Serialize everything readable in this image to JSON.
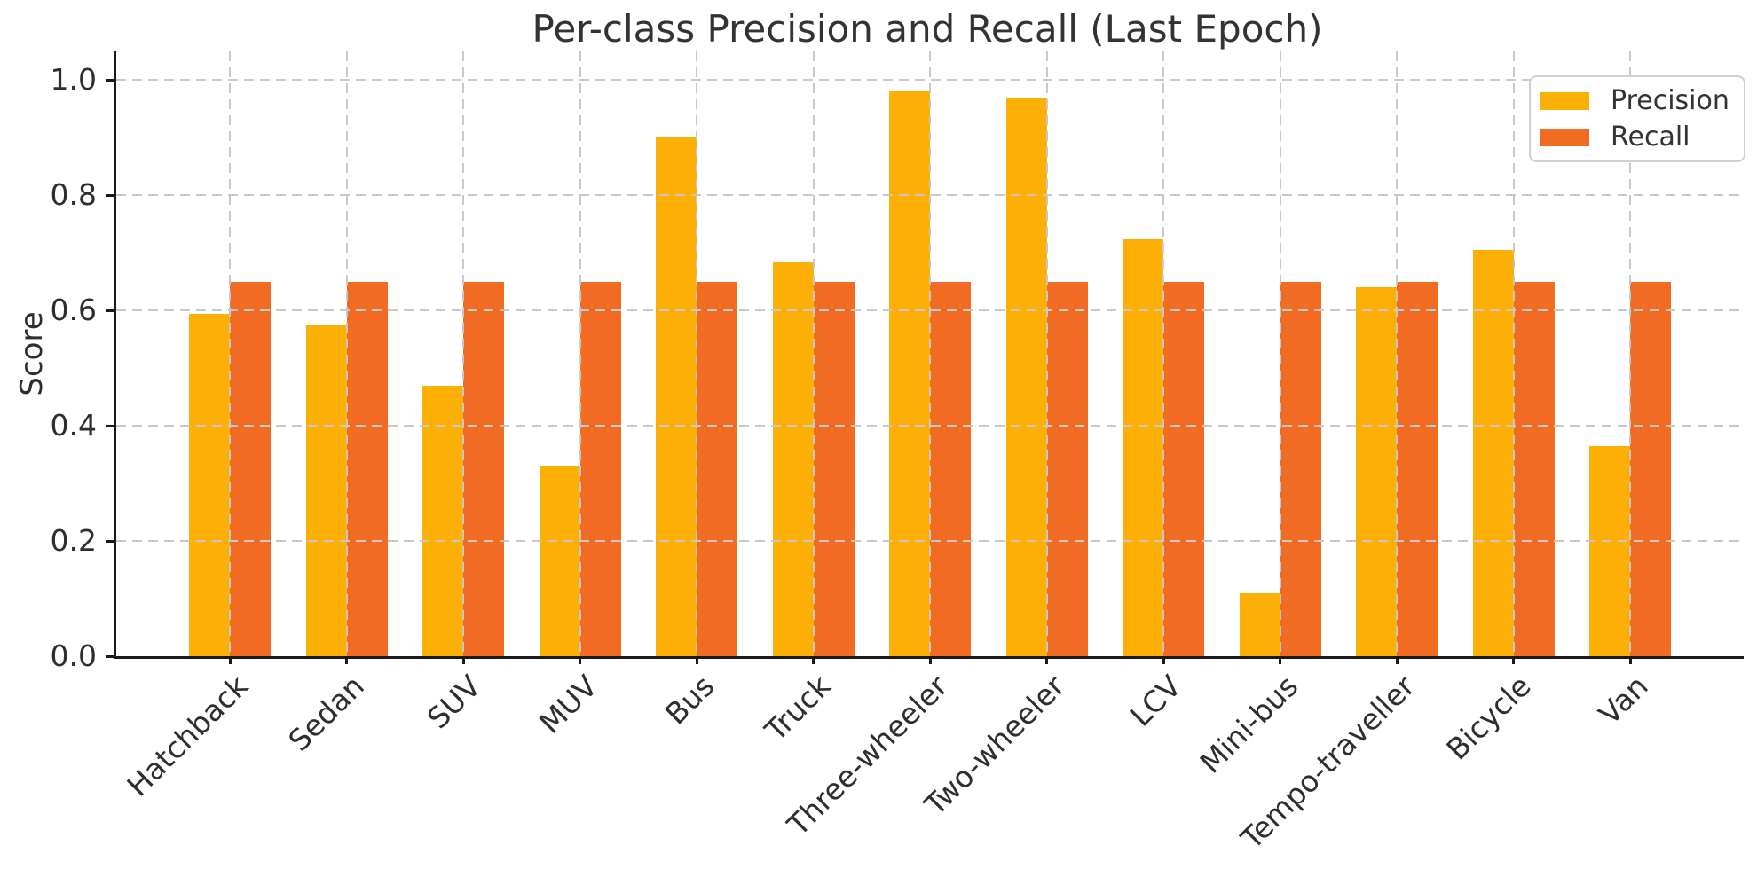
{
  "chart_data": {
    "type": "bar",
    "title": "Per-class Precision and Recall (Last Epoch)",
    "xlabel": "",
    "ylabel": "Score",
    "ylim": [
      0,
      1.05
    ],
    "yticks": [
      "0.0",
      "0.2",
      "0.4",
      "0.6",
      "0.8",
      "1.0"
    ],
    "grid": true,
    "grid_style": "dashed",
    "legend_position": "upper right",
    "categories": [
      "Hatchback",
      "Sedan",
      "SUV",
      "MUV",
      "Bus",
      "Truck",
      "Three-wheeler",
      "Two-wheeler",
      "LCV",
      "Mini-bus",
      "Tempo-traveller",
      "Bicycle",
      "Van"
    ],
    "series": [
      {
        "name": "Precision",
        "color": "#fcaf04",
        "values": [
          0.595,
          0.575,
          0.47,
          0.33,
          0.9,
          0.685,
          0.98,
          0.97,
          0.725,
          0.11,
          0.64,
          0.705,
          0.365
        ]
      },
      {
        "name": "Recall",
        "color": "#f26b22",
        "values": [
          0.65,
          0.65,
          0.65,
          0.65,
          0.65,
          0.65,
          0.65,
          0.65,
          0.65,
          0.65,
          0.65,
          0.65,
          0.65
        ]
      }
    ],
    "colors": {
      "grid": "#c8c8c8",
      "axis": "#1a1a1a",
      "text": "#2e2e2e",
      "background": "#ffffff"
    }
  }
}
